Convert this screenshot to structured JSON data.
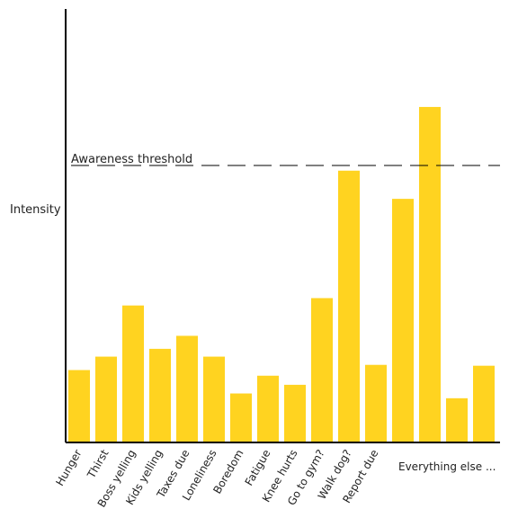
{
  "chart_data": {
    "type": "bar",
    "title": "",
    "xlabel": "",
    "ylabel": "Intensity",
    "categories": [
      "Hunger",
      "Thirst",
      "Boss yelling",
      "Kids yelling",
      "Taxes due",
      "Loneliness",
      "Boredom",
      "Fatigue",
      "Knee hurts",
      "Go to gym?",
      "Walk dog?",
      "Report due",
      "",
      "",
      "",
      ""
    ],
    "values": [
      0.167,
      0.198,
      0.316,
      0.216,
      0.246,
      0.198,
      0.113,
      0.154,
      0.133,
      0.333,
      0.627,
      0.179,
      0.562,
      0.774,
      0.102,
      0.177
    ],
    "ylim": [
      0,
      1
    ],
    "grid": false,
    "legend": "none",
    "threshold": {
      "label": "Awareness threshold",
      "value": 0.639
    },
    "extra_label": "Everything else ...",
    "bar_color": "#FFD320",
    "axis_color": "#000000",
    "threshold_color": "#000000"
  }
}
